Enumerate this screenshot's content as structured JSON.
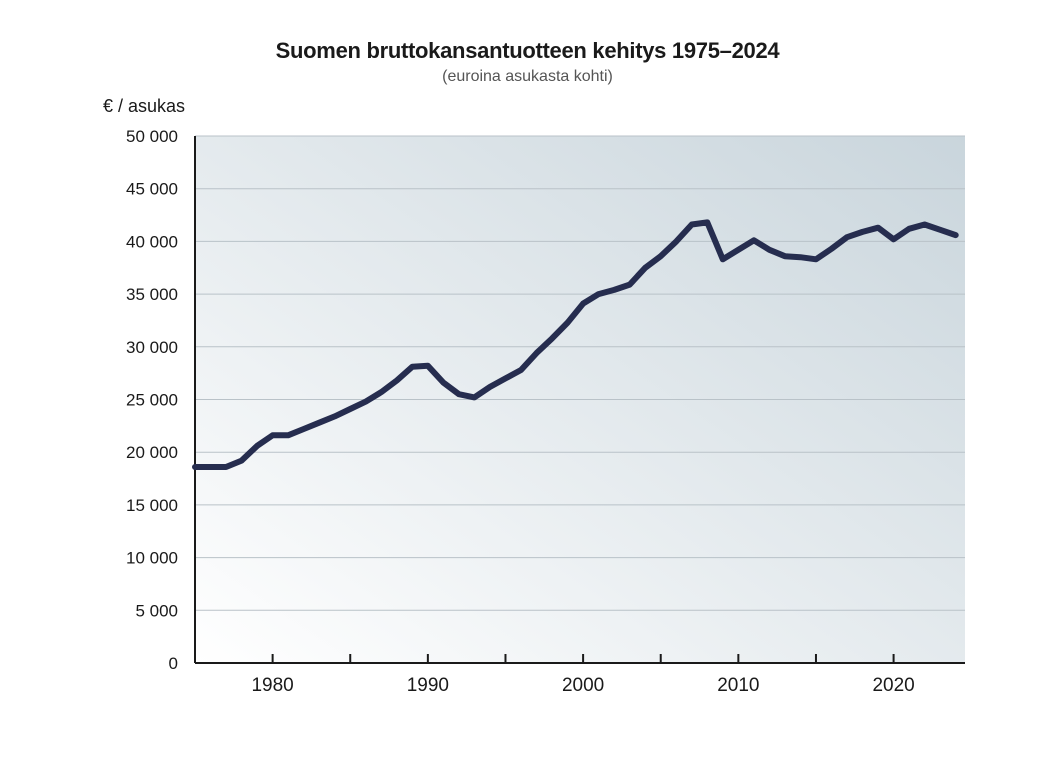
{
  "chart_data": {
    "type": "line",
    "title": "Suomen bruttokansantuotteen kehitys 1975–2024",
    "subtitle": "(euroina asukasta kohti)",
    "ylabel": "€ / asukas",
    "xlabel": "",
    "ylim": [
      0,
      50000
    ],
    "xlim": [
      1975,
      2024
    ],
    "yticks": [
      0,
      5000,
      10000,
      15000,
      20000,
      25000,
      30000,
      35000,
      40000,
      45000,
      50000
    ],
    "ytick_labels": [
      "0",
      "5 000",
      "10 000",
      "15 000",
      "20 000",
      "25 000",
      "30 000",
      "35 000",
      "40 000",
      "45 000",
      "50 000"
    ],
    "xticks": [
      1980,
      1990,
      2000,
      2010,
      2020
    ],
    "xtick_labels": [
      "1980",
      "1990",
      "2000",
      "2010",
      "2020"
    ],
    "grid": "horizontal",
    "line_color": "#262d4f",
    "series": [
      {
        "name": "",
        "x": [
          1975,
          1976,
          1977,
          1978,
          1979,
          1980,
          1981,
          1982,
          1983,
          1984,
          1985,
          1986,
          1987,
          1988,
          1989,
          1990,
          1991,
          1992,
          1993,
          1994,
          1995,
          1996,
          1997,
          1998,
          1999,
          2000,
          2001,
          2002,
          2003,
          2004,
          2005,
          2006,
          2007,
          2008,
          2009,
          2010,
          2011,
          2012,
          2013,
          2014,
          2015,
          2016,
          2017,
          2018,
          2019,
          2020,
          2021,
          2022,
          2023,
          2024
        ],
        "values": [
          18600,
          18600,
          18600,
          19200,
          20600,
          21600,
          21600,
          22200,
          22800,
          23400,
          24100,
          24800,
          25700,
          26800,
          28100,
          28200,
          26600,
          25500,
          25200,
          26200,
          27000,
          27800,
          29400,
          30800,
          32300,
          34100,
          35000,
          35400,
          35900,
          37500,
          38600,
          40000,
          41600,
          41800,
          38300,
          39200,
          40100,
          39200,
          38600,
          38500,
          38300,
          39300,
          40400,
          40900,
          41300,
          40200,
          41200,
          41600,
          41100,
          40600
        ]
      }
    ]
  }
}
